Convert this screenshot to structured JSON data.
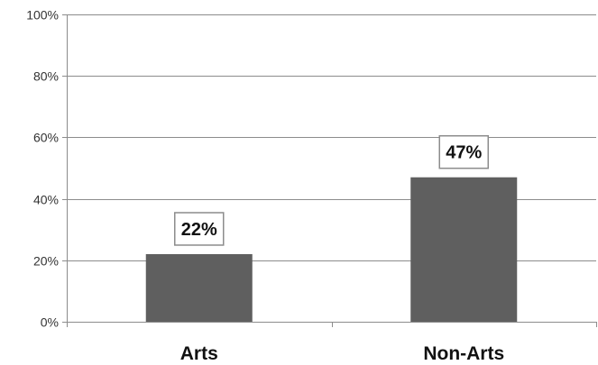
{
  "chart_data": {
    "type": "bar",
    "categories": [
      "Arts",
      "Non-Arts"
    ],
    "values": [
      22,
      47
    ],
    "data_labels": [
      "22%",
      "47%"
    ],
    "ylim": [
      0,
      100
    ],
    "yticks": [
      0,
      20,
      40,
      60,
      80,
      100
    ],
    "ytick_labels": [
      "0%",
      "20%",
      "40%",
      "60%",
      "80%",
      "100%"
    ],
    "grid": true,
    "legend": "none",
    "colors": {
      "bar": "#5f5f5f",
      "grid": "#8c8c8c",
      "label_border": "#8c8c8c"
    }
  }
}
